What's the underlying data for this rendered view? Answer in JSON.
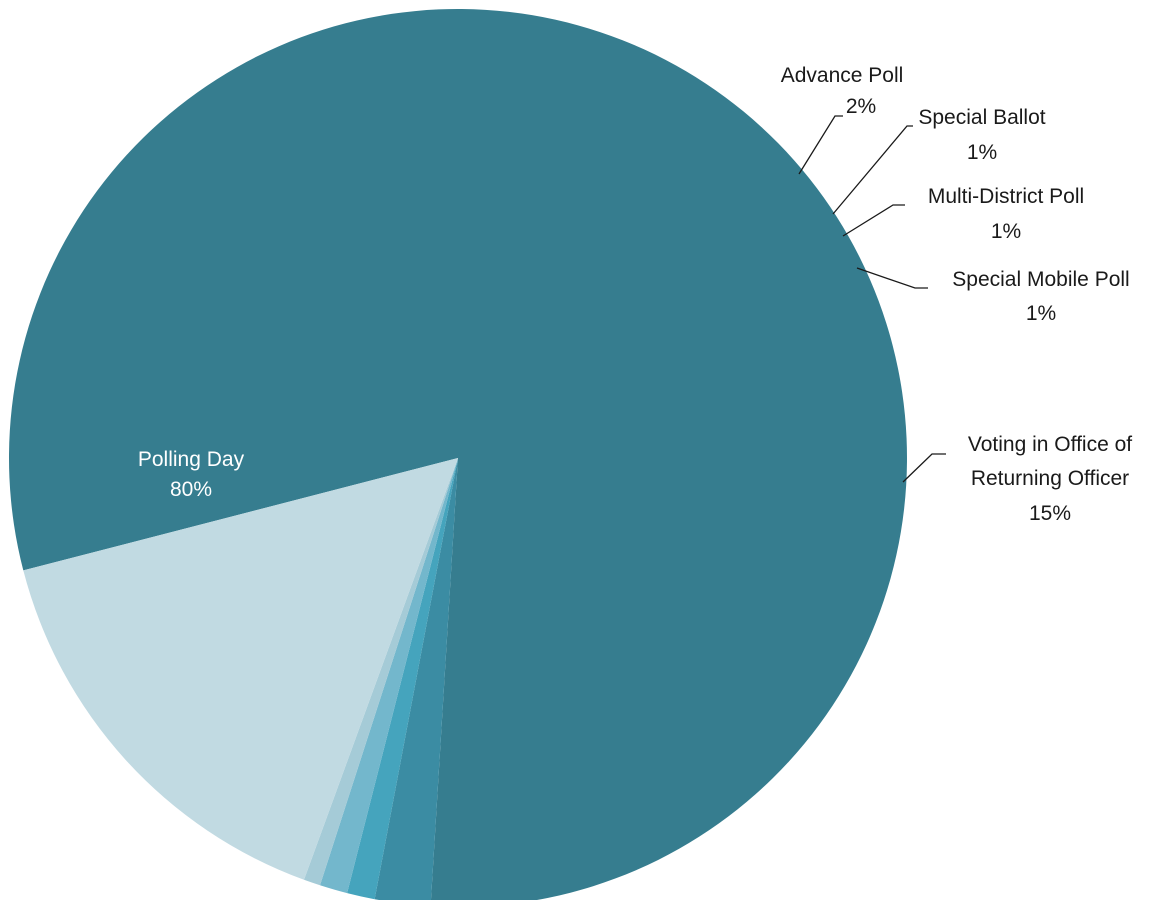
{
  "chart_data": {
    "type": "pie",
    "title": "",
    "legend": "none",
    "slices": [
      {
        "label": "Polling Day",
        "percent_label": "80%",
        "value": 80.0,
        "color": "#367d8f"
      },
      {
        "label": "Advance Poll",
        "percent_label": "2%",
        "value": 2.0,
        "color": "#3b8ca3"
      },
      {
        "label": "Special Ballot",
        "percent_label": "1%",
        "value": 1.0,
        "color": "#45a4bd"
      },
      {
        "label": "Multi-District Poll",
        "percent_label": "1%",
        "value": 1.0,
        "color": "#73b7cc"
      },
      {
        "label": "Special Mobile Poll",
        "percent_label": "1%",
        "value": 0.6,
        "color": "#a5cbd7"
      },
      {
        "label": "Voting in Office of Returning Officer",
        "percent_label": "15%",
        "value": 15.4,
        "color": "#c1dae2"
      }
    ]
  }
}
